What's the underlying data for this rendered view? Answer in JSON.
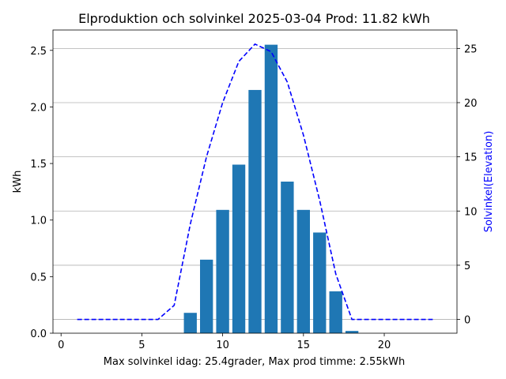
{
  "chart_data": {
    "type": "bar",
    "title": "Elproduktion och solvinkel 2025-03-04 Prod: 11.82 kWh",
    "xlabel": "Max solvinkel idag: 25.4grader, Max prod timme: 2.55kWh",
    "ylabel": "kWh",
    "y2label": "Solvinkel(Elevation)",
    "xlim": [
      -0.5,
      24.5
    ],
    "ylim": [
      0,
      2.68
    ],
    "y2lim": [
      -1.27,
      26.7
    ],
    "xticks": [
      0,
      5,
      10,
      15,
      20
    ],
    "yticks": [
      0.0,
      0.5,
      1.0,
      1.5,
      2.0,
      2.5
    ],
    "y2ticks": [
      0,
      5,
      10,
      15,
      20,
      25
    ],
    "grid": "horizontal, right axis",
    "bar_series": {
      "name": "kWh",
      "color": "#1f77b4",
      "hours": [
        8,
        9,
        10,
        11,
        12,
        13,
        14,
        15,
        16,
        17,
        18
      ],
      "values": [
        0.18,
        0.65,
        1.09,
        1.49,
        2.15,
        2.55,
        1.34,
        1.09,
        0.89,
        0.37,
        0.02
      ]
    },
    "line_series": {
      "name": "Solvinkel(Elevation)",
      "color": "#0000ff",
      "style": "dashed",
      "hours": [
        1,
        2,
        3,
        4,
        5,
        6,
        7,
        8,
        9,
        10,
        11,
        12,
        13,
        14,
        15,
        16,
        17,
        18,
        19,
        20,
        21,
        22,
        23
      ],
      "values": [
        0,
        0,
        0,
        0,
        0,
        0,
        1.3,
        8.8,
        15.0,
        20.0,
        23.8,
        25.4,
        24.7,
        21.9,
        17.0,
        11.0,
        4.2,
        0,
        0,
        0,
        0,
        0,
        0
      ]
    }
  }
}
